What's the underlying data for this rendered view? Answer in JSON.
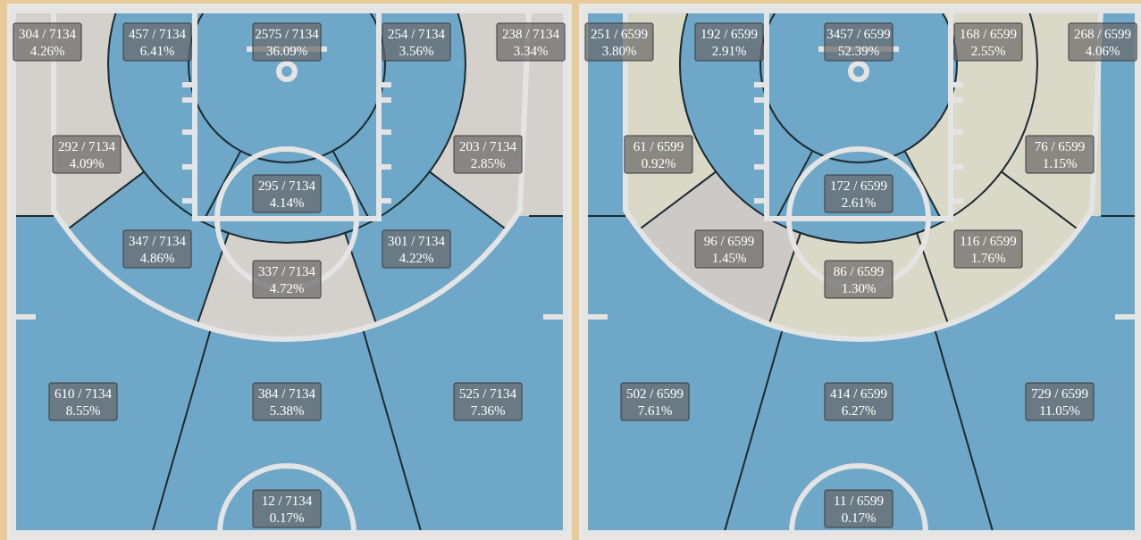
{
  "chart_data": [
    {
      "type": "other",
      "categories": [
        null,
        null,
        null,
        null,
        null,
        null,
        null,
        null,
        null,
        null,
        null,
        null,
        null,
        null,
        null
      ],
      "values": [
        4.26,
        6.41,
        36.09,
        3.56,
        3.34,
        4.09,
        2.85,
        4.14,
        4.86,
        4.22,
        4.72,
        8.55,
        5.38,
        7.36,
        0.17
      ],
      "value_labels": [
        "304 / 7134\n4.26%",
        "457 / 7134\n6.41%",
        "2575 / 7134\n36.09%",
        "254 / 7134\n3.56%",
        "238 / 7134\n3.34%",
        "292 / 7134\n4.09%",
        "203 / 7134\n2.85%",
        "295 / 7134\n4.14%",
        "347 / 7134\n4.86%",
        "301 / 7134\n4.22%",
        "337 / 7134\n4.72%",
        "610 / 7134\n8.55%",
        "384 / 7134\n5.38%",
        "525 / 7134\n7.36%",
        "12 / 7134\n0.17%"
      ],
      "colors": [
        "#d4d1cc",
        "#6ea7c8",
        "#6ea7c8",
        "#6ea7c8",
        "#d4d1cc",
        "#d4d1cc",
        "#d4d1cc",
        "#6ea7c8",
        "#6ea7c8",
        "#6ea7c8",
        "#d4d1cc",
        "#6ea7c8",
        "#6ea7c8",
        "#6ea7c8",
        "#6ea7c8"
      ]
    },
    {
      "type": "other",
      "categories": [
        null,
        null,
        null,
        null,
        null,
        null,
        null,
        null,
        null,
        null,
        null,
        null,
        null,
        null,
        null
      ],
      "values": [
        3.8,
        2.91,
        52.39,
        2.55,
        4.06,
        0.92,
        1.15,
        2.61,
        1.45,
        1.76,
        1.3,
        7.61,
        6.27,
        11.05,
        0.17
      ],
      "value_labels": [
        "251 / 6599\n3.80%",
        "192 / 6599\n2.91%",
        "3457 / 6599\n52.39%",
        "168 / 6599\n2.55%",
        "268 / 6599\n4.06%",
        "61 / 6599\n0.92%",
        "76 / 6599\n1.15%",
        "172 / 6599\n2.61%",
        "96 / 6599\n1.45%",
        "116 / 6599\n1.76%",
        "86 / 6599\n1.30%",
        "502 / 6599\n7.61%",
        "414 / 6599\n6.27%",
        "729 / 6599\n11.05%",
        "11 / 6599\n0.17%"
      ],
      "colors": [
        "#6ea7c8",
        "#6ea7c8",
        "#6ea7c8",
        "#dad8c7",
        "#6ea7c8",
        "#dad8c7",
        "#dad8c7",
        "#6ea7c8",
        "#cdc9c6",
        "#dad8c7",
        "#dad8c7",
        "#6ea7c8",
        "#6ea7c8",
        "#6ea7c8",
        "#6ea7c8"
      ]
    }
  ]
}
